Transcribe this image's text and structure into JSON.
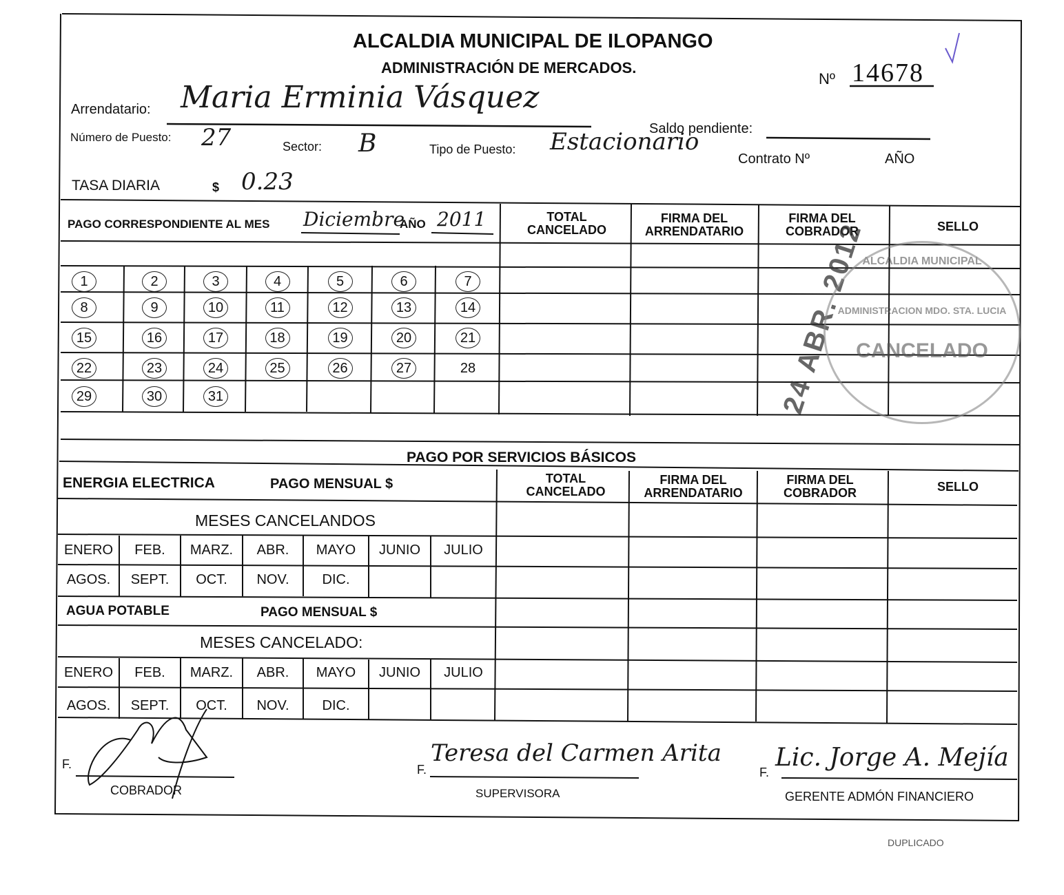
{
  "header": {
    "title": "ALCALDIA MUNICIPAL DE ILOPANGO",
    "subtitle": "ADMINISTRACIÓN DE MERCADOS.",
    "number_label": "Nº",
    "number": "14678",
    "checkmark": "✓"
  },
  "fields": {
    "arrendatario_label": "Arrendatario:",
    "arrendatario": "Maria Erminia Vásquez",
    "puesto_label": "Número de Puesto:",
    "puesto": "27",
    "sector_label": "Sector:",
    "sector": "B",
    "tipo_label": "Tipo de Puesto:",
    "tipo": "Estacionario",
    "saldo_label": "Saldo pendiente:",
    "contrato_label": "Contrato Nº",
    "anio_label": "AÑO",
    "tasa_label": "TASA DIARIA",
    "tasa_currency": "$",
    "tasa": "0.23"
  },
  "pago": {
    "mes_label": "PAGO CORRESPONDIENTE AL MES",
    "mes": "Diciembre",
    "anio_label": "AÑO",
    "anio": "2011",
    "col_total": "TOTAL CANCELADO",
    "col_firma_arr": "FIRMA DEL ARRENDATARIO",
    "col_firma_cob": "FIRMA DEL COBRADOR",
    "col_sello": "SELLO",
    "days": [
      "1",
      "2",
      "3",
      "4",
      "5",
      "6",
      "7",
      "8",
      "9",
      "10",
      "11",
      "12",
      "13",
      "14",
      "15",
      "16",
      "17",
      "18",
      "19",
      "20",
      "21",
      "22",
      "23",
      "24",
      "25",
      "26",
      "27",
      "28",
      "29",
      "30",
      "31"
    ],
    "uncircled_days": [
      "28"
    ]
  },
  "stamps": {
    "date": "24 ABR. 2012",
    "circle_top": "ALCALDIA MUNICIPAL",
    "circle_mid": "ADMINISTRACION MDO. STA. LUCIA",
    "circle_main": "CANCELADO"
  },
  "servicios": {
    "title": "PAGO POR SERVICIOS BÁSICOS",
    "energia_label": "ENERGIA ELECTRICA",
    "energia_pago": "PAGO MENSUAL $",
    "energia_meses": "MESES CANCELANDOS",
    "agua_label": "AGUA POTABLE",
    "agua_pago": "PAGO MENSUAL $",
    "agua_meses": "MESES CANCELADO:",
    "col_total": "TOTAL CANCELADO",
    "col_firma_arr": "FIRMA DEL ARRENDATARIO",
    "col_firma_cob": "FIRMA DEL COBRADOR",
    "col_sello": "SELLO",
    "months_row1": [
      "ENERO",
      "FEB.",
      "MARZ.",
      "ABR.",
      "MAYO",
      "JUNIO",
      "JULIO"
    ],
    "months_row2": [
      "AGOS.",
      "SEPT.",
      "OCT.",
      "NOV.",
      "DIC."
    ]
  },
  "firmas": {
    "prefix": "F.",
    "cobrador": "COBRADOR",
    "supervisora_sig": "Teresa del Carmen Arita",
    "supervisora": "SUPERVISORA",
    "gerente_sig": "Lic. Jorge A. Mejía",
    "gerente": "GERENTE ADMÓN FINANCIERO",
    "duplicado": "DUPLICADO"
  }
}
